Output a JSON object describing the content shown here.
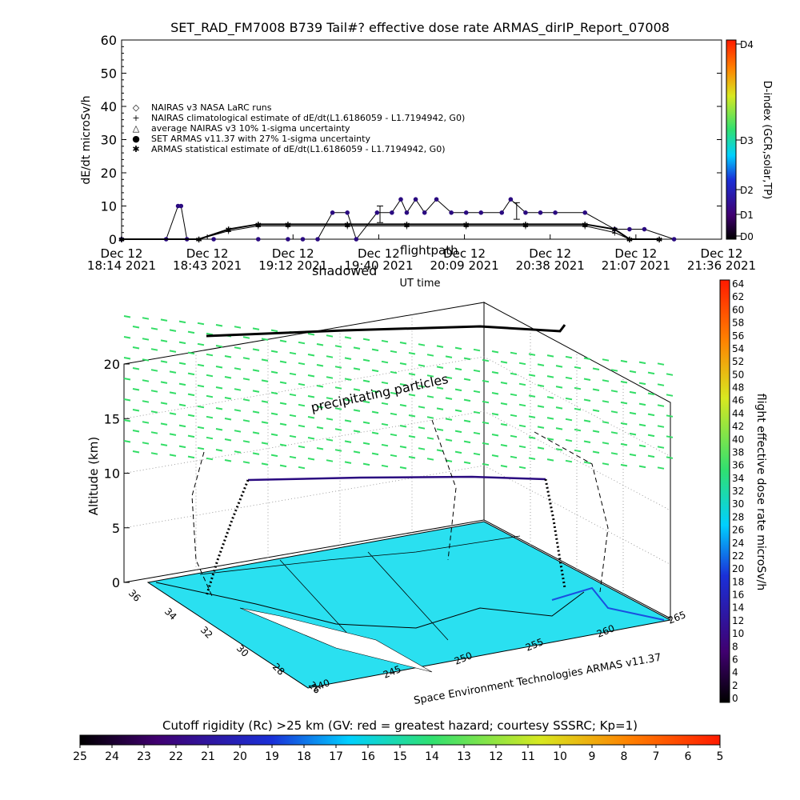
{
  "top_chart": {
    "title": "SET_RAD_FM7008  B739 Tail#? effective dose rate ARMAS_dirIP_Report_07008",
    "ylabel": "dE/dt microSv/h",
    "xlabel": "UT time",
    "right_axis_title": "D-index (GCR,solar,TP)",
    "right_axis_ticks": [
      "D4",
      "D3",
      "D2",
      "D1",
      "D0"
    ],
    "y_ticks": [
      "60",
      "50",
      "40",
      "30",
      "20",
      "10",
      "0"
    ],
    "x_ticks": [
      {
        "date": "Dec 12",
        "time": "18:14 2021"
      },
      {
        "date": "Dec 12",
        "time": "18:43 2021"
      },
      {
        "date": "Dec 12",
        "time": "19:12 2021"
      },
      {
        "date": "Dec 12",
        "time": "19:40 2021"
      },
      {
        "date": "Dec 12",
        "time": "20:09 2021"
      },
      {
        "date": "Dec 12",
        "time": "20:38 2021"
      },
      {
        "date": "Dec 12",
        "time": "21:07 2021"
      },
      {
        "date": "Dec 12",
        "time": "21:36 2021"
      }
    ],
    "legend": [
      {
        "symbol": "◇",
        "label": "NAIRAS v3 NASA LaRC runs"
      },
      {
        "symbol": "+",
        "label": "NAIRAS climatological estimate of dE/dt(L1.6186059 - L1.7194942, G0)"
      },
      {
        "symbol": "△",
        "label": "average NAIRAS v3 10% 1-sigma uncertainty"
      },
      {
        "symbol": "●",
        "label": "SET ARMAS v11.37 with 27% 1-sigma uncertainty",
        "color": "#1a1ad0"
      },
      {
        "symbol": "✱",
        "label": "ARMAS statistical estimate of dE/dt(L1.6186059 - L1.7194942, G0)"
      }
    ],
    "overlay_labels": [
      "flightpath",
      "shadowed"
    ]
  },
  "chart_data": [
    {
      "type": "line",
      "title": "SET_RAD_FM7008  B739 Tail#? effective dose rate ARMAS_dirIP_Report_07008",
      "xlabel": "UT time",
      "ylabel": "dE/dt microSv/h",
      "ylim": [
        0,
        60
      ],
      "x_range": [
        "18:14",
        "21:36"
      ],
      "series": [
        {
          "name": "SET ARMAS v11.37 with 27% 1-sigma uncertainty",
          "x": [
            "18:14",
            "18:29",
            "18:33",
            "18:34",
            "18:36",
            "18:45",
            "19:00",
            "19:10",
            "19:15",
            "19:20",
            "19:25",
            "19:30",
            "19:33",
            "19:40",
            "19:45",
            "19:48",
            "19:50",
            "19:53",
            "19:56",
            "20:00",
            "20:05",
            "20:10",
            "20:15",
            "20:22",
            "20:25",
            "20:30",
            "20:35",
            "20:40",
            "20:50",
            "21:00",
            "21:05",
            "21:10",
            "21:20"
          ],
          "values": [
            0,
            0,
            10,
            10,
            0,
            0,
            0,
            0,
            0,
            0,
            8,
            8,
            0,
            8,
            8,
            12,
            8,
            12,
            8,
            12,
            8,
            8,
            8,
            8,
            12,
            8,
            8,
            8,
            8,
            3,
            3,
            3,
            0
          ]
        },
        {
          "name": "ARMAS statistical estimate of dE/dt(L1.6186059 - L1.7194942, G0)",
          "x": [
            "18:14",
            "18:40",
            "18:50",
            "19:00",
            "19:10",
            "19:30",
            "19:50",
            "20:10",
            "20:30",
            "20:50",
            "21:00",
            "21:05",
            "21:15"
          ],
          "values": [
            0,
            0,
            3,
            4.5,
            4.5,
            4.5,
            4.5,
            4.5,
            4.5,
            4.5,
            3,
            0,
            0
          ]
        },
        {
          "name": "NAIRAS climatological estimate of dE/dt(L1.6186059 - L1.7194942, G0)",
          "x": [
            "18:14",
            "18:40",
            "18:50",
            "19:00",
            "19:10",
            "19:30",
            "19:50",
            "20:10",
            "20:30",
            "20:50",
            "21:00",
            "21:05",
            "21:15"
          ],
          "values": [
            0,
            0,
            2.5,
            4,
            4,
            4,
            4,
            4,
            4,
            4,
            2,
            0,
            0
          ]
        }
      ],
      "error_bars": [
        {
          "x": "19:41",
          "value": 8,
          "low": 5,
          "high": 10
        },
        {
          "x": "20:27",
          "value": 8,
          "low": 6,
          "high": 11
        }
      ]
    },
    {
      "type": "scatter",
      "title": "",
      "zlabel": "Altitude (km)",
      "zlim": [
        0,
        20
      ],
      "z_ticks": [
        "0",
        "5",
        "10",
        "15",
        "20"
      ],
      "lat_ticks": [
        "36",
        "34",
        "32",
        "30",
        "28",
        "26"
      ],
      "lon_ticks": [
        "240",
        "245",
        "250",
        "255",
        "260",
        "265"
      ],
      "flight_altitude_km": 10,
      "annotation": "precipitating particles",
      "footer": "Space Environment Technologies ARMAS v11.37",
      "color_scale_title": "flight effective dose rate microSv/h",
      "color_scale_ticks": [
        "64",
        "62",
        "60",
        "58",
        "56",
        "54",
        "52",
        "50",
        "48",
        "46",
        "44",
        "42",
        "40",
        "38",
        "36",
        "34",
        "32",
        "30",
        "28",
        "26",
        "24",
        "22",
        "20",
        "18",
        "16",
        "14",
        "12",
        "10",
        "8",
        "6",
        "4",
        "2",
        "0"
      ],
      "grid": true
    },
    {
      "type": "heatmap",
      "title": "Cutoff rigidity (Rc) >25 km (GV: red = greatest hazard; courtesy SSSRC; Kp=1)",
      "scale_ticks": [
        "25",
        "24",
        "23",
        "22",
        "21",
        "20",
        "19",
        "18",
        "17",
        "16",
        "15",
        "14",
        "13",
        "12",
        "11",
        "10",
        "9",
        "8",
        "7",
        "6",
        "5"
      ]
    }
  ],
  "colors": {
    "flight_line": "#3a1a6e",
    "particles": "#33dd66",
    "ground": "#22ddee",
    "armas_points": "#2a0a80"
  }
}
